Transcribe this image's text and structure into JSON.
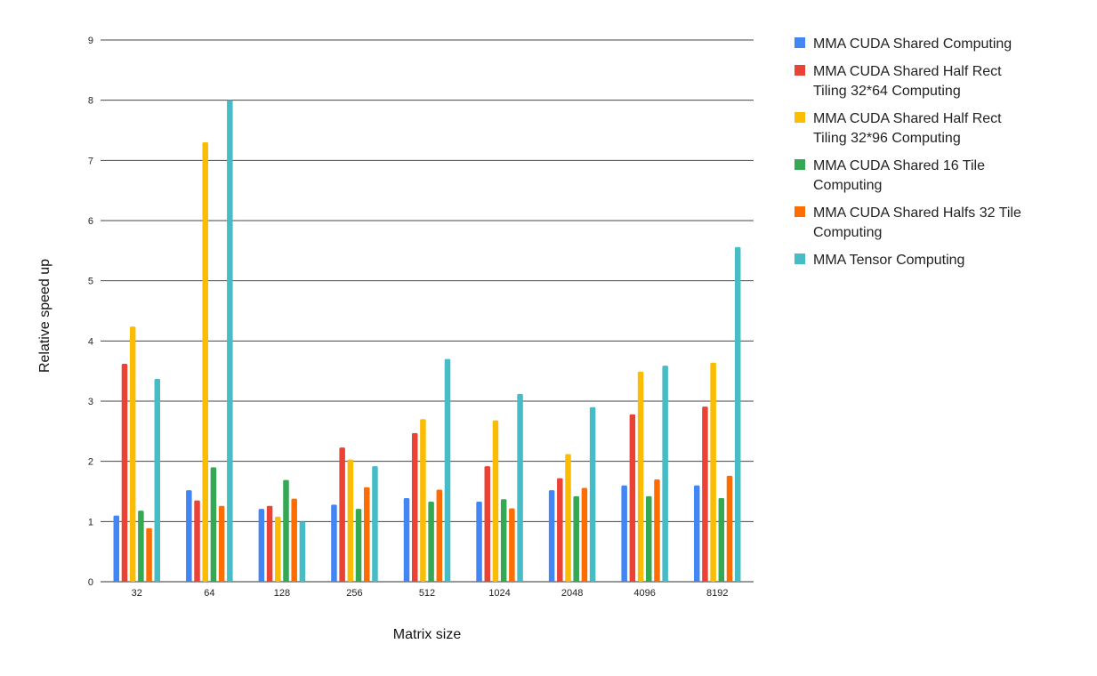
{
  "chart_data": {
    "type": "bar",
    "xlabel": "Matrix size",
    "ylabel": "Relative speed up",
    "ylim": [
      0,
      9
    ],
    "yticks": [
      "0",
      "1",
      "2",
      "3",
      "4",
      "5",
      "6",
      "7",
      "8",
      "9"
    ],
    "grid": true,
    "legend_position": "right",
    "categories": [
      "32",
      "64",
      "128",
      "256",
      "512",
      "1024",
      "2048",
      "4096",
      "8192"
    ],
    "series": [
      {
        "name": "MMA CUDA Shared Computing",
        "color": "#4285f4",
        "values": [
          1.1,
          1.52,
          1.21,
          1.28,
          1.39,
          1.33,
          1.52,
          1.6,
          1.6
        ]
      },
      {
        "name": "MMA CUDA Shared Half Rect Tiling 32*64 Computing",
        "color": "#ea4335",
        "values": [
          3.62,
          1.35,
          1.26,
          2.23,
          2.47,
          1.92,
          1.72,
          2.78,
          2.91
        ]
      },
      {
        "name": "MMA CUDA Shared Half Rect Tiling 32*96 Computing",
        "color": "#fbbc04",
        "values": [
          4.24,
          7.3,
          1.08,
          2.03,
          2.7,
          2.68,
          2.12,
          3.49,
          3.64
        ]
      },
      {
        "name": "MMA CUDA Shared 16 Tile Computing",
        "color": "#34a853",
        "values": [
          1.18,
          1.9,
          1.69,
          1.21,
          1.33,
          1.37,
          1.42,
          1.42,
          1.39
        ]
      },
      {
        "name": "MMA CUDA Shared Halfs 32 Tile Computing",
        "color": "#ff6d01",
        "values": [
          0.89,
          1.26,
          1.38,
          1.57,
          1.53,
          1.22,
          1.56,
          1.7,
          1.76
        ]
      },
      {
        "name": "MMA Tensor Computing",
        "color": "#46bdc6",
        "values": [
          3.37,
          8.0,
          1.0,
          1.92,
          3.7,
          3.12,
          2.9,
          3.59,
          5.56
        ]
      }
    ]
  }
}
